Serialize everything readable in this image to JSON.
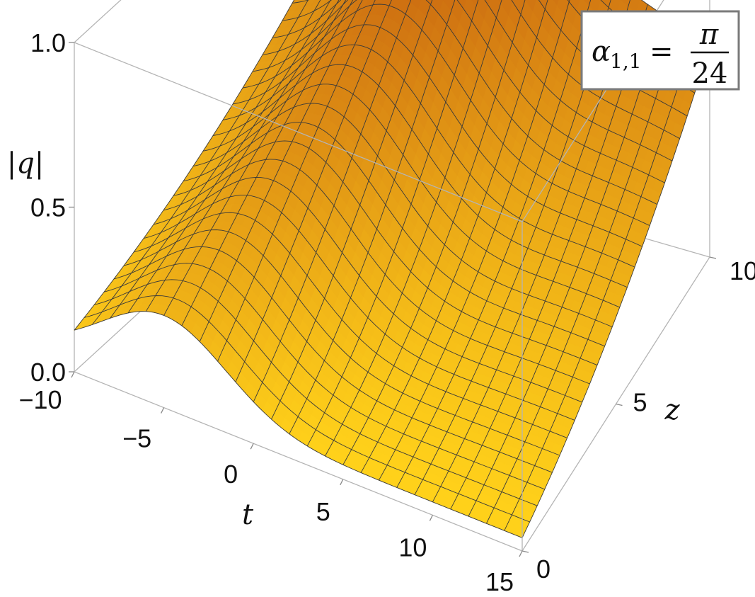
{
  "chart_data": {
    "type": "surface3d",
    "title": "",
    "function": "|q|(t,z)",
    "xlabel": "t",
    "ylabel": "z",
    "zlabel": "|q|",
    "xlim": [
      -10,
      15
    ],
    "ylim": [
      0,
      10
    ],
    "zlim": [
      0,
      1
    ],
    "x_ticks": [
      "−10",
      "−5",
      "0",
      "5",
      "10",
      "15"
    ],
    "x_tick_values": [
      -10,
      -5,
      0,
      5,
      10,
      15
    ],
    "y_ticks": [
      "0",
      "5",
      "10"
    ],
    "y_tick_values": [
      0,
      5,
      10
    ],
    "z_ticks": [
      "0.0",
      "0.5",
      "1.0"
    ],
    "z_tick_values": [
      0,
      0.5,
      1
    ],
    "mesh_lines": 25,
    "legend": {
      "symbol": "α",
      "subscript": "1,1",
      "relation": "=",
      "numerator": "π",
      "denominator": "24"
    },
    "surface_samples": {
      "t": [
        -10,
        -5,
        0,
        5,
        10,
        15
      ],
      "z": [
        0,
        5,
        10
      ],
      "q_at_z0": [
        0.05,
        0.28,
        0.08,
        0.07,
        0.04,
        0.02
      ],
      "q_at_z5": [
        0.3,
        0.35,
        0.5,
        0.45,
        0.33,
        0.3
      ],
      "q_at_z10": [
        0.72,
        0.86,
        1.0,
        0.9,
        0.45,
        0.55
      ]
    },
    "colors": {
      "surface_low": "#ffd11a",
      "surface_high": "#c86410",
      "mesh": "#3a3a3a",
      "box": "#b4b4b4"
    }
  }
}
